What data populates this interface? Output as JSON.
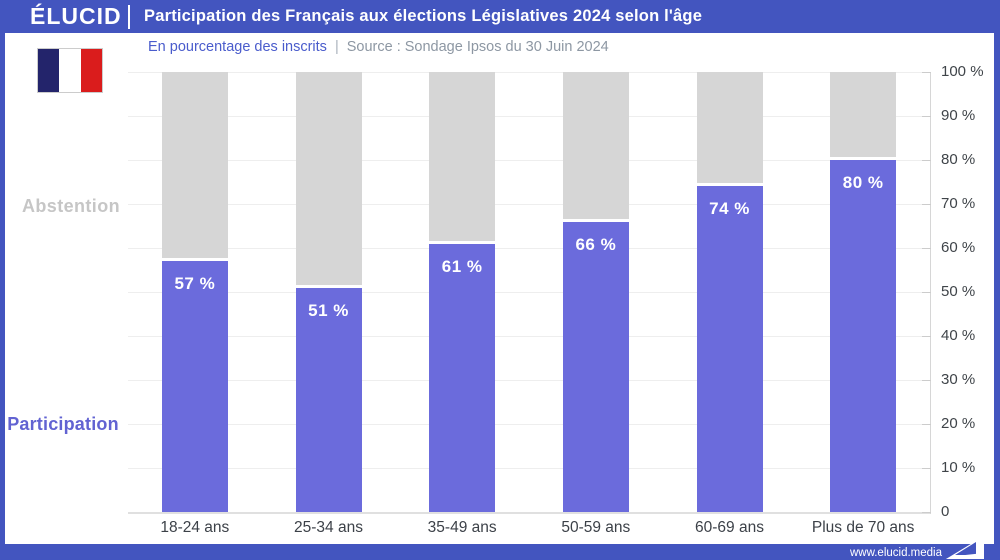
{
  "header": {
    "brand": "ÉLUCID",
    "title": "Participation des Français aux élections Législatives 2024 selon l'âge"
  },
  "subtitle": {
    "left": "En pourcentage des inscrits",
    "separator": "|",
    "source": "Source : Sondage Ipsos du 30 Juin 2024"
  },
  "side_labels": {
    "abstention": "Abstention",
    "participation": "Participation"
  },
  "footer": {
    "url": "www.elucid.media"
  },
  "colors": {
    "header_blue": "#4355bf",
    "bar_participation": "#6b6bdc",
    "bar_abstention": "#d6d6d6",
    "subtitle_blue": "#4a5ccc",
    "subtitle_gray": "#8d97a3",
    "flag_navy": "#23246b",
    "flag_red": "#da1c1c"
  },
  "chart_data": {
    "type": "bar",
    "stacked": true,
    "title": "Participation des Français aux élections Législatives 2024 selon l'âge",
    "subtitle": "En pourcentage des inscrits",
    "source": "Source : Sondage Ipsos du 30 Juin 2024",
    "categories": [
      "18-24 ans",
      "25-34 ans",
      "35-49 ans",
      "50-59 ans",
      "60-69 ans",
      "Plus de 70 ans"
    ],
    "series": [
      {
        "name": "Participation",
        "values": [
          57,
          51,
          61,
          66,
          74,
          80
        ],
        "color": "#6b6bdc"
      },
      {
        "name": "Abstention",
        "values": [
          43,
          49,
          39,
          34,
          26,
          20
        ],
        "color": "#d6d6d6"
      }
    ],
    "value_labels": [
      "57 %",
      "51 %",
      "61 %",
      "66 %",
      "74 %",
      "80 %"
    ],
    "ylabel_ticks": [
      "100 %",
      "90 %",
      "80 %",
      "70 %",
      "60 %",
      "50 %",
      "40 %",
      "30 %",
      "20 %",
      "10 %",
      "0"
    ],
    "ylim": [
      0,
      100
    ],
    "grid": true,
    "yaxis_position": "right",
    "xlabel": "",
    "ylabel": ""
  }
}
